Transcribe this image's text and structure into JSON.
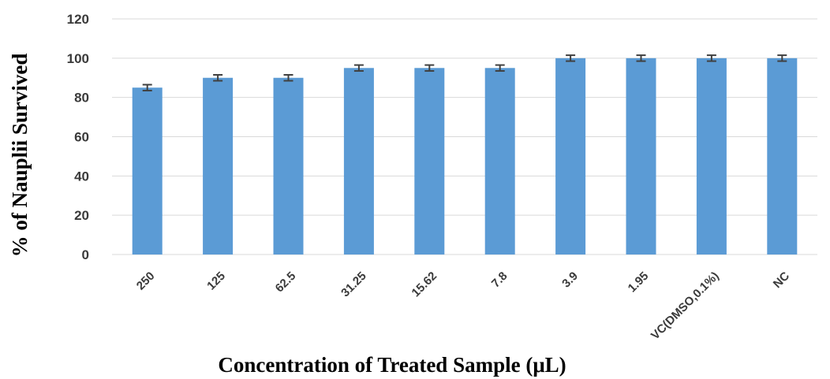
{
  "chart_data": {
    "type": "bar",
    "categories": [
      "250",
      "125",
      "62.5",
      "31.25",
      "15.62",
      "7.8",
      "3.9",
      "1.95",
      "VC(DMSO,0.1%)",
      "NC"
    ],
    "values": [
      85,
      90,
      90,
      95,
      95,
      95,
      100,
      100,
      100,
      100
    ],
    "error": [
      1.5,
      1.5,
      1.5,
      1.5,
      1.5,
      1.5,
      1.5,
      1.5,
      1.5,
      1.5
    ],
    "xlabel": "Concentration of Treated Sample (μL)",
    "ylabel": "% of Nauplii Survived",
    "ylim": [
      0,
      120
    ],
    "yticks": [
      "0",
      "20",
      "40",
      "60",
      "80",
      "100",
      "120"
    ],
    "grid": true,
    "bar_color": "#5b9bd5",
    "error_bar_color": "#404040"
  }
}
